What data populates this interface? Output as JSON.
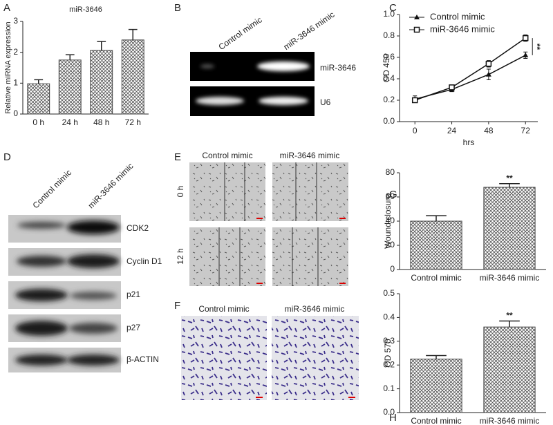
{
  "chart_data": [
    {
      "type": "bar",
      "panel": "A",
      "title": "miR-3646",
      "y_label": "Relative miRNA expression",
      "categories": [
        "0 h",
        "24 h",
        "48 h",
        "72 h"
      ],
      "values": [
        0.98,
        1.75,
        2.06,
        2.4
      ],
      "errors": [
        0.13,
        0.17,
        0.29,
        0.34
      ],
      "ylim": [
        0,
        3
      ],
      "yticks": [
        0,
        1,
        2,
        3
      ],
      "color": "#444444"
    },
    {
      "type": "line",
      "panel": "C",
      "x_label": "hrs",
      "y_label": "OD 450",
      "x": [
        0,
        24,
        48,
        72
      ],
      "xlim": [
        -10,
        80
      ],
      "xticks": [
        0,
        24,
        48,
        72
      ],
      "ylim": [
        0,
        1
      ],
      "yticks": [
        {
          "value": 0,
          "label": "0.0"
        },
        0.2,
        0.4,
        0.6,
        0.8,
        {
          "value": 1,
          "label": "1.0"
        }
      ],
      "series": [
        {
          "name": "Control mimic",
          "color": "#111111",
          "marker": "triangle",
          "values": [
            0.21,
            0.3,
            0.44,
            0.62
          ],
          "errors": [
            0.03,
            0.02,
            0.05,
            0.03
          ]
        },
        {
          "name": "miR-3646 mimic",
          "color": "#111111",
          "marker": "square",
          "values": [
            0.2,
            0.32,
            0.54,
            0.78
          ],
          "errors": [
            0.02,
            0.02,
            0.03,
            0.03
          ]
        }
      ],
      "legend": "upper left",
      "annotation": "**"
    },
    {
      "type": "bar",
      "panel": "G",
      "y_label": "Wound closure",
      "annotation": "**",
      "categories": [
        "Control mimic",
        "miR-3646 mimic"
      ],
      "values": [
        40,
        68
      ],
      "errors": [
        4.5,
        3
      ],
      "ylim": [
        0,
        80
      ],
      "yticks": [
        0,
        20,
        40,
        60,
        80
      ],
      "color": "#444444"
    },
    {
      "type": "bar",
      "panel": "H",
      "y_label": "OD 570",
      "annotation": "**",
      "categories": [
        "Control mimic",
        "miR-3646 mimic"
      ],
      "values": [
        0.225,
        0.36
      ],
      "errors": [
        0.015,
        0.025
      ],
      "ylim": [
        0,
        0.5
      ],
      "yticks": [
        {
          "value": 0,
          "label": "0.0"
        },
        0.1,
        0.2,
        0.3,
        0.4,
        0.5
      ],
      "color": "#444444"
    }
  ],
  "gel": {
    "panel": "B",
    "lanes": [
      "Control mimic",
      "miR-3646 mimic"
    ],
    "bands": [
      "miR-3646",
      "U6"
    ]
  },
  "western": {
    "panel": "D",
    "lanes": [
      "Control mimic",
      "miR-3646 mimic"
    ],
    "bands": [
      "CDK2",
      "Cyclin D1",
      "p21",
      "p27",
      "β-ACTIN"
    ]
  },
  "wound": {
    "panel": "E",
    "columns": [
      "Control mimic",
      "miR-3646 mimic"
    ],
    "rows": [
      "0 h",
      "12 h"
    ]
  },
  "transwell": {
    "panel": "F",
    "columns": [
      "Control mimic",
      "miR-3646 mimic"
    ]
  }
}
